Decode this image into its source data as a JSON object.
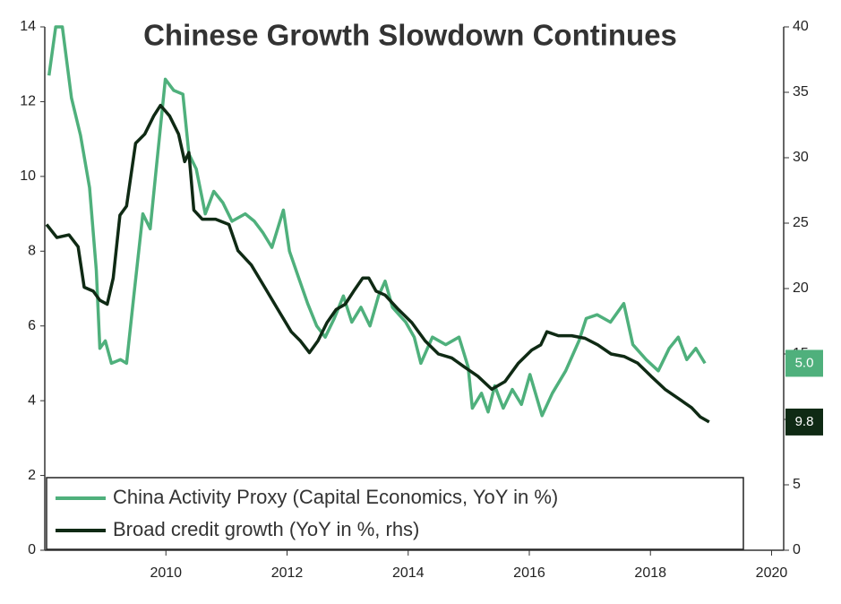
{
  "chart_data": {
    "type": "line",
    "title": "Chinese Growth Slowdown Continues",
    "xlim": [
      2008,
      2020.2
    ],
    "xticks": [
      2010,
      2012,
      2014,
      2016,
      2018,
      2020
    ],
    "ylim": [
      0,
      14
    ],
    "yticks": [
      0,
      2,
      4,
      6,
      8,
      10,
      12,
      14
    ],
    "y2lim": [
      0,
      40
    ],
    "y2ticks": [
      0,
      5,
      10,
      15,
      20,
      25,
      30,
      35,
      40
    ],
    "series": [
      {
        "name": "China Activity Proxy (Capital Economics, YoY in %)",
        "color": "#4fb07c",
        "end_label": "5.0",
        "x": [
          2008.07,
          2008.18,
          2008.29,
          2008.44,
          2008.59,
          2008.74,
          2008.85,
          2008.91,
          2009.0,
          2009.1,
          2009.25,
          2009.35,
          2009.47,
          2009.62,
          2009.74,
          2009.84,
          2009.99,
          2010.13,
          2010.28,
          2010.38,
          2010.5,
          2010.65,
          2010.79,
          2010.94,
          2011.09,
          2011.31,
          2011.46,
          2011.6,
          2011.75,
          2011.94,
          2012.04,
          2012.19,
          2012.34,
          2012.49,
          2012.63,
          2012.78,
          2012.93,
          2013.07,
          2013.22,
          2013.37,
          2013.51,
          2013.62,
          2013.74,
          2013.96,
          2014.1,
          2014.21,
          2014.4,
          2014.62,
          2014.84,
          2014.99,
          2015.06,
          2015.21,
          2015.32,
          2015.43,
          2015.57,
          2015.72,
          2015.87,
          2016.01,
          2016.21,
          2016.38,
          2016.6,
          2016.82,
          2016.94,
          2017.12,
          2017.34,
          2017.56,
          2017.71,
          2017.93,
          2018.13,
          2018.31,
          2018.46,
          2018.6,
          2018.75,
          2018.9
        ],
        "values": [
          12.7,
          14.0,
          14.0,
          12.1,
          11.1,
          9.7,
          7.5,
          5.4,
          5.6,
          5.0,
          5.1,
          5.0,
          6.8,
          9.0,
          8.6,
          10.2,
          12.6,
          12.3,
          12.2,
          10.6,
          10.2,
          9.0,
          9.6,
          9.3,
          8.8,
          9.0,
          8.8,
          8.5,
          8.1,
          9.1,
          8.0,
          7.3,
          6.6,
          6.0,
          5.7,
          6.2,
          6.8,
          6.1,
          6.5,
          6.0,
          6.8,
          7.2,
          6.5,
          6.1,
          5.7,
          5.0,
          5.7,
          5.5,
          5.7,
          4.9,
          3.8,
          4.2,
          3.7,
          4.4,
          3.8,
          4.3,
          3.9,
          4.7,
          3.6,
          4.2,
          4.8,
          5.6,
          6.2,
          6.3,
          6.1,
          6.6,
          5.5,
          5.1,
          4.8,
          5.4,
          5.7,
          5.1,
          5.4,
          5.0
        ]
      },
      {
        "name": "Broad credit growth (YoY in %, rhs)",
        "color": "#0f2a14",
        "axis": "y2",
        "end_label": "9.8",
        "x": [
          2008.03,
          2008.2,
          2008.4,
          2008.55,
          2008.65,
          2008.8,
          2008.91,
          2009.03,
          2009.13,
          2009.24,
          2009.35,
          2009.5,
          2009.65,
          2009.8,
          2009.91,
          2010.06,
          2010.21,
          2010.31,
          2010.38,
          2010.46,
          2010.6,
          2010.82,
          2011.04,
          2011.19,
          2011.41,
          2011.63,
          2011.85,
          2012.07,
          2012.22,
          2012.37,
          2012.51,
          2012.66,
          2012.81,
          2012.96,
          2013.1,
          2013.25,
          2013.35,
          2013.47,
          2013.62,
          2013.84,
          2014.06,
          2014.28,
          2014.5,
          2014.72,
          2014.93,
          2015.15,
          2015.38,
          2015.6,
          2015.82,
          2016.04,
          2016.19,
          2016.29,
          2016.48,
          2016.7,
          2016.92,
          2017.13,
          2017.35,
          2017.57,
          2017.79,
          2018.01,
          2018.24,
          2018.46,
          2018.68,
          2018.82,
          2018.97
        ],
        "values": [
          24.9,
          23.9,
          24.1,
          23.2,
          20.1,
          19.8,
          19.1,
          18.8,
          20.8,
          25.6,
          26.3,
          31.1,
          31.8,
          33.2,
          34.0,
          33.2,
          31.8,
          29.7,
          30.4,
          26.0,
          25.3,
          25.3,
          24.9,
          22.9,
          21.8,
          20.1,
          18.4,
          16.7,
          16.0,
          15.1,
          16.0,
          17.4,
          18.4,
          18.8,
          19.8,
          20.8,
          20.8,
          19.8,
          19.5,
          18.4,
          17.4,
          16.0,
          15.0,
          14.7,
          14.0,
          13.3,
          12.3,
          12.9,
          14.3,
          15.3,
          15.7,
          16.7,
          16.4,
          16.4,
          16.2,
          15.7,
          15.0,
          14.8,
          14.3,
          13.3,
          12.3,
          11.6,
          10.9,
          10.2,
          9.8
        ]
      }
    ]
  }
}
